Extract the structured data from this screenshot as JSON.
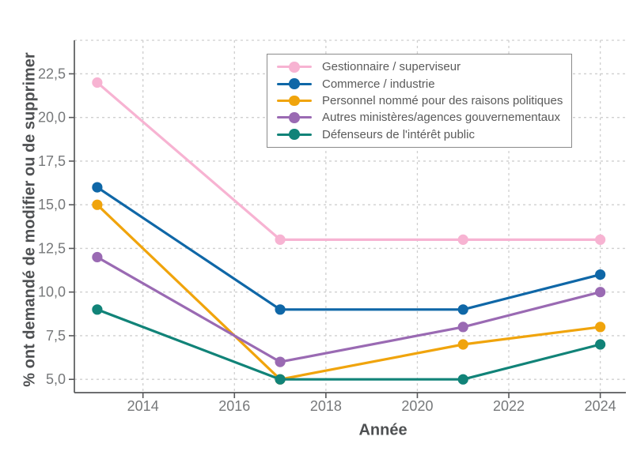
{
  "chart_data": {
    "type": "line",
    "title": "",
    "xlabel": "Année",
    "ylabel": "% ont demandé de modifier ou de supprimer",
    "x": [
      2013,
      2017,
      2021,
      2024
    ],
    "series": [
      {
        "name": "Gestionnaire / superviseur",
        "color": "#f7b3d2",
        "values": [
          22,
          13,
          13,
          13
        ]
      },
      {
        "name": "Commerce / industrie",
        "color": "#0f67a7",
        "values": [
          16,
          9,
          9,
          11
        ]
      },
      {
        "name": "Personnel nommé pour des raisons politiques",
        "color": "#f0a40c",
        "values": [
          15,
          5,
          7,
          8
        ]
      },
      {
        "name": "Autres ministères/agences gouvernementaux",
        "color": "#9a6ab3",
        "values": [
          12,
          6,
          8,
          10
        ]
      },
      {
        "name": "Défenseurs de l'intérêt public",
        "color": "#118378",
        "values": [
          9,
          5,
          5,
          7
        ]
      }
    ],
    "x_ticks": [
      {
        "value": 2014,
        "label": "2014"
      },
      {
        "value": 2016,
        "label": "2016"
      },
      {
        "value": 2018,
        "label": "2018"
      },
      {
        "value": 2020,
        "label": "2020"
      },
      {
        "value": 2022,
        "label": "2022"
      },
      {
        "value": 2024,
        "label": "2024"
      }
    ],
    "y_ticks": [
      {
        "value": 5.0,
        "label": "5,0"
      },
      {
        "value": 7.5,
        "label": "7,5"
      },
      {
        "value": 10.0,
        "label": "10,0"
      },
      {
        "value": 12.5,
        "label": "12,5"
      },
      {
        "value": 15.0,
        "label": "15,0"
      },
      {
        "value": 17.5,
        "label": "17,5"
      },
      {
        "value": 20.0,
        "label": "20,0"
      },
      {
        "value": 22.5,
        "label": "22,5"
      }
    ],
    "xlim": [
      2012.5,
      2024.56
    ],
    "ylim": [
      4.24,
      24.42
    ],
    "grid": true,
    "legend_position": "top-right-inside"
  },
  "style": {
    "grid_color": "#cfcfcf",
    "spine_color": "#58595b",
    "tick_label_color": "#76787a",
    "axis_title_color": "#4e5052",
    "legend_border_color": "#8a8a8a",
    "background": "#ffffff"
  }
}
